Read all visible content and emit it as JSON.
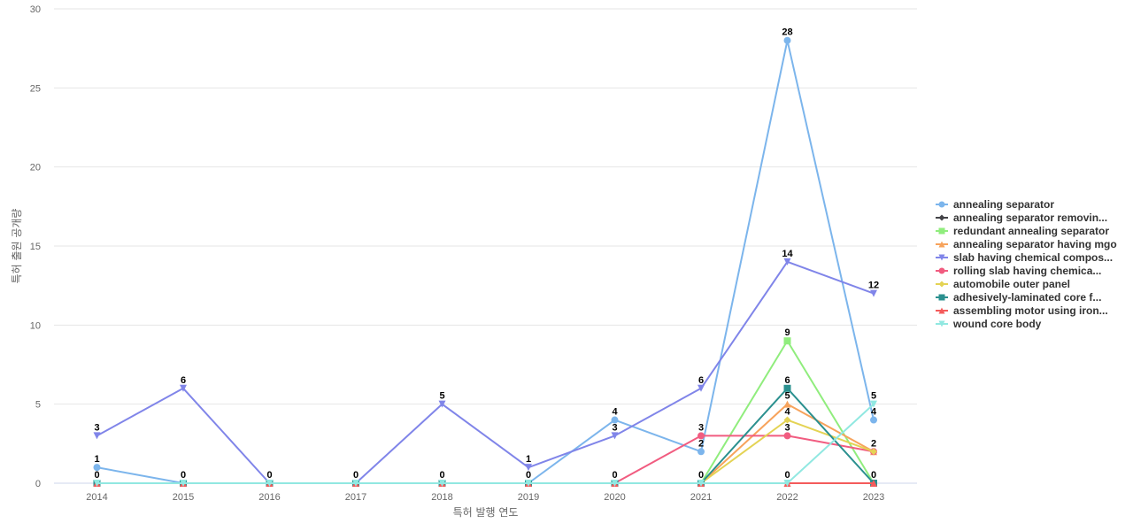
{
  "chart_data": {
    "type": "line",
    "title": "",
    "xlabel": "특허 발행 연도",
    "ylabel": "특허 출원 공개량",
    "x": [
      "2014",
      "2015",
      "2016",
      "2017",
      "2018",
      "2019",
      "2020",
      "2021",
      "2022",
      "2023"
    ],
    "ylim": [
      0,
      30
    ],
    "yticks": [
      0,
      5,
      10,
      15,
      20,
      25,
      30
    ],
    "grid": true,
    "legend_position": "right",
    "series": [
      {
        "name": "annealing separator",
        "color": "#7cb5ec",
        "marker": "circle",
        "values": [
          1,
          0,
          0,
          0,
          0,
          0,
          4,
          2,
          28,
          4
        ]
      },
      {
        "name": "annealing separator removin...",
        "color": "#434348",
        "marker": "diamond",
        "values": [
          0,
          0,
          0,
          0,
          0,
          0,
          0,
          0,
          0,
          0
        ]
      },
      {
        "name": "redundant annealing separator",
        "color": "#90ed7d",
        "marker": "square",
        "values": [
          0,
          0,
          0,
          0,
          0,
          0,
          0,
          0,
          9,
          0
        ]
      },
      {
        "name": "annealing separator having mgo",
        "color": "#f7a35c",
        "marker": "triangle",
        "values": [
          0,
          0,
          0,
          0,
          0,
          0,
          0,
          0,
          5,
          2
        ]
      },
      {
        "name": "slab having chemical compos...",
        "color": "#8085e9",
        "marker": "triangle-down",
        "values": [
          3,
          6,
          0,
          0,
          5,
          1,
          3,
          6,
          14,
          12
        ]
      },
      {
        "name": "rolling slab having chemica...",
        "color": "#f15c80",
        "marker": "circle",
        "values": [
          0,
          0,
          0,
          0,
          0,
          0,
          0,
          3,
          3,
          2
        ]
      },
      {
        "name": "automobile outer panel",
        "color": "#e4d354",
        "marker": "diamond",
        "values": [
          0,
          0,
          0,
          0,
          0,
          0,
          0,
          0,
          4,
          2
        ]
      },
      {
        "name": "adhesively-laminated core f...",
        "color": "#2b908f",
        "marker": "square",
        "values": [
          0,
          0,
          0,
          0,
          0,
          0,
          0,
          0,
          6,
          0
        ]
      },
      {
        "name": "assembling motor using iron...",
        "color": "#f45b5b",
        "marker": "triangle",
        "values": [
          0,
          0,
          0,
          0,
          0,
          0,
          0,
          0,
          0,
          0
        ]
      },
      {
        "name": "wound core body",
        "color": "#91e8e1",
        "marker": "triangle-down",
        "values": [
          0,
          0,
          0,
          0,
          0,
          0,
          0,
          0,
          0,
          5
        ]
      }
    ],
    "data_labels": [
      {
        "x": "2014",
        "value": "3"
      },
      {
        "x": "2014",
        "value": "1"
      },
      {
        "x": "2014",
        "value": "0"
      },
      {
        "x": "2015",
        "value": "6"
      },
      {
        "x": "2015",
        "value": "0"
      },
      {
        "x": "2016",
        "value": "0"
      },
      {
        "x": "2017",
        "value": "0"
      },
      {
        "x": "2018",
        "value": "5"
      },
      {
        "x": "2018",
        "value": "0"
      },
      {
        "x": "2019",
        "value": "1"
      },
      {
        "x": "2019",
        "value": "0"
      },
      {
        "x": "2020",
        "value": "4"
      },
      {
        "x": "2020",
        "value": "3"
      },
      {
        "x": "2020",
        "value": "0"
      },
      {
        "x": "2021",
        "value": "6"
      },
      {
        "x": "2021",
        "value": "3"
      },
      {
        "x": "2021",
        "value": "2"
      },
      {
        "x": "2021",
        "value": "0"
      },
      {
        "x": "2022",
        "value": "28"
      },
      {
        "x": "2022",
        "value": "14"
      },
      {
        "x": "2022",
        "value": "9"
      },
      {
        "x": "2022",
        "value": "6"
      },
      {
        "x": "2022",
        "value": "5"
      },
      {
        "x": "2022",
        "value": "4"
      },
      {
        "x": "2022",
        "value": "3"
      },
      {
        "x": "2022",
        "value": "0"
      },
      {
        "x": "2023",
        "value": "12"
      },
      {
        "x": "2023",
        "value": "5"
      },
      {
        "x": "2023",
        "value": "4"
      },
      {
        "x": "2023",
        "value": "2"
      },
      {
        "x": "2023",
        "value": "0"
      }
    ]
  }
}
